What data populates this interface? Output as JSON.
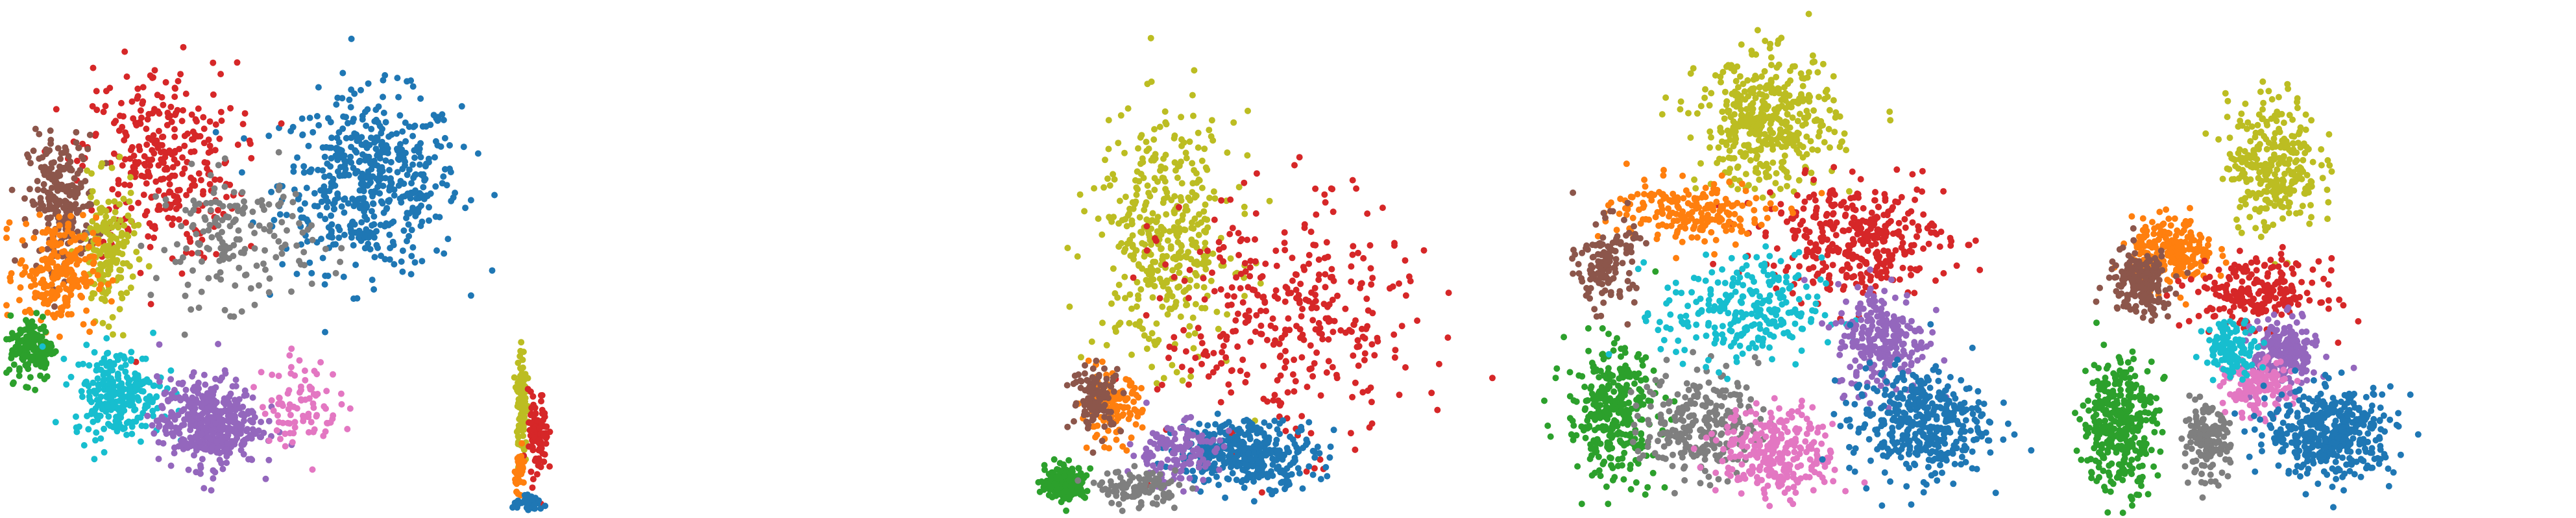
{
  "colors": {
    "blue": "#1f77b4",
    "orange": "#ff7f0e",
    "green": "#2ca02c",
    "red": "#d62728",
    "purple": "#9467bd",
    "brown": "#8c564b",
    "pink": "#e377c2",
    "gray": "#7f7f7f",
    "olive": "#bcbd22",
    "cyan": "#17becf"
  },
  "chart_data": [
    {
      "type": "scatter",
      "axes_visible": false,
      "grid": false,
      "xlim": [
        0,
        1
      ],
      "ylim": [
        0,
        1
      ],
      "clusters": [
        {
          "color": "blue",
          "center": [
            0.72,
            0.66
          ],
          "spread": [
            0.16,
            0.16
          ],
          "count": 520
        },
        {
          "color": "red",
          "center": [
            0.3,
            0.7
          ],
          "spread": [
            0.14,
            0.18
          ],
          "count": 320
        },
        {
          "color": "brown",
          "center": [
            0.11,
            0.62
          ],
          "spread": [
            0.06,
            0.12
          ],
          "count": 230
        },
        {
          "color": "gray",
          "center": [
            0.45,
            0.55
          ],
          "spread": [
            0.14,
            0.12
          ],
          "count": 170
        },
        {
          "color": "olive",
          "center": [
            0.2,
            0.52
          ],
          "spread": [
            0.05,
            0.12
          ],
          "count": 170
        },
        {
          "color": "orange",
          "center": [
            0.1,
            0.48
          ],
          "spread": [
            0.07,
            0.1
          ],
          "count": 220
        },
        {
          "color": "green",
          "center": [
            0.05,
            0.33
          ],
          "spread": [
            0.04,
            0.06
          ],
          "count": 150
        },
        {
          "color": "cyan",
          "center": [
            0.22,
            0.24
          ],
          "spread": [
            0.08,
            0.08
          ],
          "count": 260
        },
        {
          "color": "purple",
          "center": [
            0.4,
            0.18
          ],
          "spread": [
            0.09,
            0.08
          ],
          "count": 430
        },
        {
          "color": "pink",
          "center": [
            0.58,
            0.22
          ],
          "spread": [
            0.07,
            0.08
          ],
          "count": 90
        }
      ]
    },
    {
      "type": "scatter",
      "axes_visible": false,
      "grid": false,
      "xlim": [
        0,
        1
      ],
      "ylim": [
        0,
        1
      ],
      "clusters": [
        {
          "color": "olive",
          "center": [
            0.1,
            0.5
          ],
          "spread": [
            0.05,
            0.25
          ],
          "count": 110
        },
        {
          "color": "red",
          "center": [
            0.28,
            0.35
          ],
          "spread": [
            0.1,
            0.18
          ],
          "count": 90
        },
        {
          "color": "orange",
          "center": [
            0.08,
            0.2
          ],
          "spread": [
            0.05,
            0.08
          ],
          "count": 40
        },
        {
          "color": "blue",
          "center": [
            0.2,
            0.04
          ],
          "spread": [
            0.18,
            0.03
          ],
          "count": 40
        }
      ]
    },
    {
      "type": "scatter",
      "axes_visible": false,
      "grid": false,
      "xlim": [
        0,
        1
      ],
      "ylim": [
        0,
        1
      ],
      "clusters": [
        {
          "color": "olive",
          "center": [
            0.28,
            0.55
          ],
          "spread": [
            0.14,
            0.22
          ],
          "count": 420
        },
        {
          "color": "red",
          "center": [
            0.55,
            0.38
          ],
          "spread": [
            0.25,
            0.22
          ],
          "count": 360
        },
        {
          "color": "blue",
          "center": [
            0.46,
            0.12
          ],
          "spread": [
            0.14,
            0.06
          ],
          "count": 360
        },
        {
          "color": "purple",
          "center": [
            0.3,
            0.12
          ],
          "spread": [
            0.09,
            0.06
          ],
          "count": 130
        },
        {
          "color": "orange",
          "center": [
            0.16,
            0.21
          ],
          "spread": [
            0.06,
            0.06
          ],
          "count": 130
        },
        {
          "color": "brown",
          "center": [
            0.13,
            0.23
          ],
          "spread": [
            0.05,
            0.06
          ],
          "count": 110
        },
        {
          "color": "green",
          "center": [
            0.06,
            0.06
          ],
          "spread": [
            0.04,
            0.03
          ],
          "count": 220
        },
        {
          "color": "gray",
          "center": [
            0.22,
            0.05
          ],
          "spread": [
            0.08,
            0.03
          ],
          "count": 110
        }
      ]
    },
    {
      "type": "scatter",
      "axes_visible": false,
      "grid": false,
      "xlim": [
        0,
        1
      ],
      "ylim": [
        0,
        1
      ],
      "clusters": [
        {
          "color": "olive",
          "center": [
            0.43,
            0.78
          ],
          "spread": [
            0.12,
            0.12
          ],
          "count": 420
        },
        {
          "color": "red",
          "center": [
            0.6,
            0.55
          ],
          "spread": [
            0.16,
            0.1
          ],
          "count": 360
        },
        {
          "color": "orange",
          "center": [
            0.28,
            0.6
          ],
          "spread": [
            0.14,
            0.06
          ],
          "count": 200
        },
        {
          "color": "brown",
          "center": [
            0.12,
            0.5
          ],
          "spread": [
            0.05,
            0.08
          ],
          "count": 140
        },
        {
          "color": "green",
          "center": [
            0.13,
            0.2
          ],
          "spread": [
            0.08,
            0.12
          ],
          "count": 320
        },
        {
          "color": "gray",
          "center": [
            0.3,
            0.18
          ],
          "spread": [
            0.1,
            0.1
          ],
          "count": 240
        },
        {
          "color": "pink",
          "center": [
            0.45,
            0.12
          ],
          "spread": [
            0.1,
            0.08
          ],
          "count": 280
        },
        {
          "color": "cyan",
          "center": [
            0.38,
            0.4
          ],
          "spread": [
            0.14,
            0.1
          ],
          "count": 260
        },
        {
          "color": "purple",
          "center": [
            0.65,
            0.35
          ],
          "spread": [
            0.08,
            0.1
          ],
          "count": 240
        },
        {
          "color": "blue",
          "center": [
            0.72,
            0.18
          ],
          "spread": [
            0.12,
            0.1
          ],
          "count": 400
        }
      ]
    },
    {
      "type": "scatter",
      "axes_visible": false,
      "grid": false,
      "xlim": [
        0,
        1
      ],
      "ylim": [
        0,
        1
      ],
      "clusters": [
        {
          "color": "olive",
          "center": [
            0.52,
            0.7
          ],
          "spread": [
            0.1,
            0.12
          ],
          "count": 300
        },
        {
          "color": "orange",
          "center": [
            0.28,
            0.52
          ],
          "spread": [
            0.09,
            0.06
          ],
          "count": 240
        },
        {
          "color": "brown",
          "center": [
            0.2,
            0.46
          ],
          "spread": [
            0.07,
            0.06
          ],
          "count": 180
        },
        {
          "color": "red",
          "center": [
            0.48,
            0.44
          ],
          "spread": [
            0.14,
            0.06
          ],
          "count": 220
        },
        {
          "color": "purple",
          "center": [
            0.55,
            0.32
          ],
          "spread": [
            0.07,
            0.06
          ],
          "count": 220
        },
        {
          "color": "pink",
          "center": [
            0.48,
            0.25
          ],
          "spread": [
            0.07,
            0.05
          ],
          "count": 150
        },
        {
          "color": "cyan",
          "center": [
            0.42,
            0.33
          ],
          "spread": [
            0.06,
            0.05
          ],
          "count": 120
        },
        {
          "color": "green",
          "center": [
            0.15,
            0.18
          ],
          "spread": [
            0.08,
            0.12
          ],
          "count": 360
        },
        {
          "color": "gray",
          "center": [
            0.36,
            0.14
          ],
          "spread": [
            0.05,
            0.06
          ],
          "count": 160
        },
        {
          "color": "blue",
          "center": [
            0.66,
            0.16
          ],
          "spread": [
            0.14,
            0.08
          ],
          "count": 440
        }
      ]
    }
  ]
}
